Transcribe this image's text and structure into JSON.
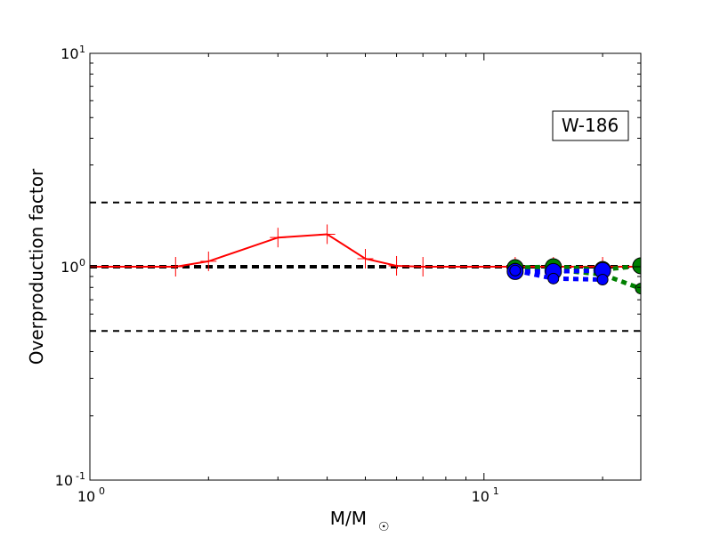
{
  "chart_data": {
    "type": "line",
    "title": "",
    "xlabel_main": "M/M",
    "xlabel_sub": "☉",
    "ylabel": "Overproduction factor",
    "annotation": "W-186",
    "xscale": "log",
    "yscale": "log",
    "xlim": [
      1,
      25
    ],
    "ylim": [
      0.1,
      10
    ],
    "x_ticks": [
      {
        "value": 1,
        "base": "10",
        "exp": "0"
      },
      {
        "value": 10,
        "base": "10",
        "exp": "1"
      }
    ],
    "y_ticks": [
      {
        "value": 0.1,
        "base": "10",
        "exp": "-1"
      },
      {
        "value": 1,
        "base": "10",
        "exp": "0"
      },
      {
        "value": 10,
        "base": "10",
        "exp": "1"
      }
    ],
    "reference_lines": [
      {
        "y": 2.0,
        "style": "dashed",
        "color": "#000000"
      },
      {
        "y": 1.0,
        "style": "dashed-thick",
        "color": "#000000"
      },
      {
        "y": 0.5,
        "style": "dashed",
        "color": "#000000"
      }
    ],
    "legend": "none",
    "grid": false,
    "series": [
      {
        "color": "#ff0000",
        "line": "solid",
        "marker": "plus",
        "points": [
          [
            1.0,
            1.0
          ],
          [
            1.65,
            1.0
          ],
          [
            2.0,
            1.06
          ],
          [
            3.0,
            1.37
          ],
          [
            4.0,
            1.42
          ],
          [
            5.0,
            1.09
          ],
          [
            6.0,
            1.01
          ],
          [
            7.0,
            1.0
          ],
          [
            12.0,
            1.0
          ],
          [
            15.0,
            1.0
          ],
          [
            20.0,
            1.0
          ],
          [
            25.0,
            1.0
          ]
        ]
      },
      {
        "color": "#008000",
        "line": "dotted",
        "marker": "circle",
        "points": [
          [
            12.0,
            0.99
          ],
          [
            15.0,
            1.0
          ],
          [
            20.0,
            0.97
          ],
          [
            25.0,
            1.01
          ]
        ]
      },
      {
        "color": "#008000",
        "line": "dotted",
        "marker": "small-circle",
        "points": [
          [
            12.0,
            0.98
          ],
          [
            15.0,
            0.97
          ],
          [
            20.0,
            0.92
          ],
          [
            25.0,
            0.79
          ]
        ]
      },
      {
        "color": "#0000ff",
        "line": "dotted",
        "marker": "circle",
        "points": [
          [
            12.0,
            0.95
          ],
          [
            15.0,
            0.95
          ],
          [
            20.0,
            0.96
          ]
        ]
      },
      {
        "color": "#0000ff",
        "line": "dotted",
        "marker": "small-circle",
        "points": [
          [
            12.0,
            0.96
          ],
          [
            15.0,
            0.88
          ],
          [
            20.0,
            0.87
          ]
        ]
      }
    ]
  }
}
